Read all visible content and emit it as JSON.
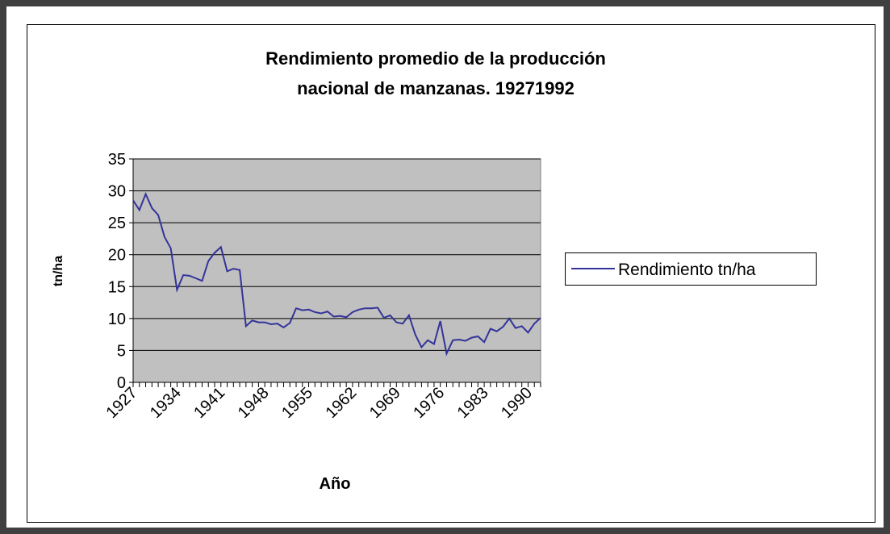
{
  "chart_data": {
    "type": "line",
    "title": [
      "Rendimiento promedio de la producción",
      "nacional de manzanas. 19271992"
    ],
    "x_label": "Año",
    "y_label": "tn/ha",
    "categories": [
      1927,
      null,
      null,
      null,
      null,
      null,
      null,
      1934,
      null,
      null,
      null,
      null,
      null,
      null,
      1941,
      null,
      null,
      null,
      null,
      null,
      null,
      1948,
      null,
      null,
      null,
      null,
      null,
      null,
      1955,
      null,
      null,
      null,
      null,
      null,
      null,
      1962,
      null,
      null,
      null,
      null,
      null,
      null,
      1969,
      null,
      null,
      null,
      null,
      null,
      null,
      1976,
      null,
      null,
      null,
      null,
      null,
      null,
      1983,
      null,
      null,
      null,
      null,
      null,
      null,
      1990,
      null,
      null
    ],
    "series": [
      {
        "name": "Rendimiento tn/ha",
        "color": "#333399",
        "values": [
          28.5,
          27,
          29.5,
          27.3,
          26.2,
          22.8,
          21,
          14.5,
          16.8,
          16.7,
          16.3,
          15.9,
          19,
          20.3,
          21.2,
          17.4,
          17.8,
          17.6,
          8.8,
          9.7,
          9.4,
          9.4,
          9.1,
          9.2,
          8.6,
          9.3,
          11.6,
          11.3,
          11.4,
          11,
          10.8,
          11.1,
          10.3,
          10.4,
          10.2,
          11,
          11.4,
          11.6,
          11.6,
          11.7,
          10.1,
          10.5,
          9.4,
          9.2,
          10.5,
          7.5,
          5.5,
          6.6,
          6,
          9.6,
          4.5,
          6.6,
          6.7,
          6.5,
          7,
          7.2,
          6.3,
          8.4,
          8,
          8.7,
          10,
          8.5,
          8.8,
          7.8,
          9.2,
          10.1
        ]
      }
    ],
    "ylim": [
      0,
      35
    ],
    "yticks": [
      0,
      5,
      10,
      15,
      20,
      25,
      30,
      35
    ],
    "grid": true,
    "legend": "right",
    "plot_background": "#c0c0c0"
  }
}
